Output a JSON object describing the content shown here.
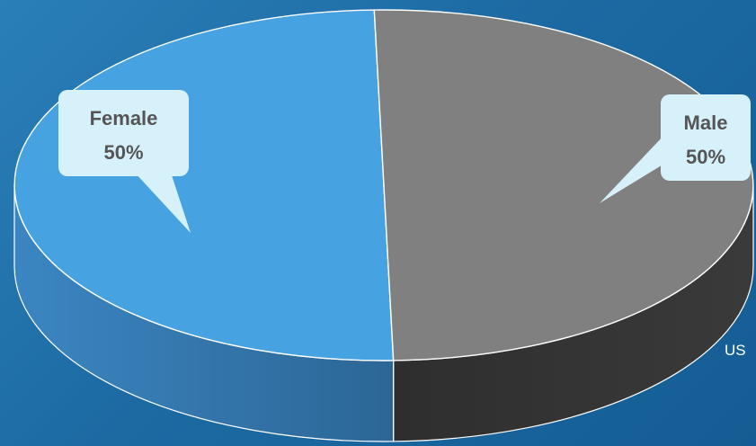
{
  "chart_data": {
    "type": "pie",
    "style": "3d",
    "categories": [
      "Female",
      "Male"
    ],
    "values": [
      50,
      50
    ],
    "data_labels": [
      "50%",
      "50%"
    ],
    "colors": [
      "#46a2e1",
      "#808080"
    ],
    "side_colors": [
      "#3a83bc",
      "#333333"
    ],
    "label_fill": "#d7f1fb",
    "label_text_color": "#555555",
    "background": "#1d6aa3",
    "legend": "none"
  },
  "side_label": "US"
}
